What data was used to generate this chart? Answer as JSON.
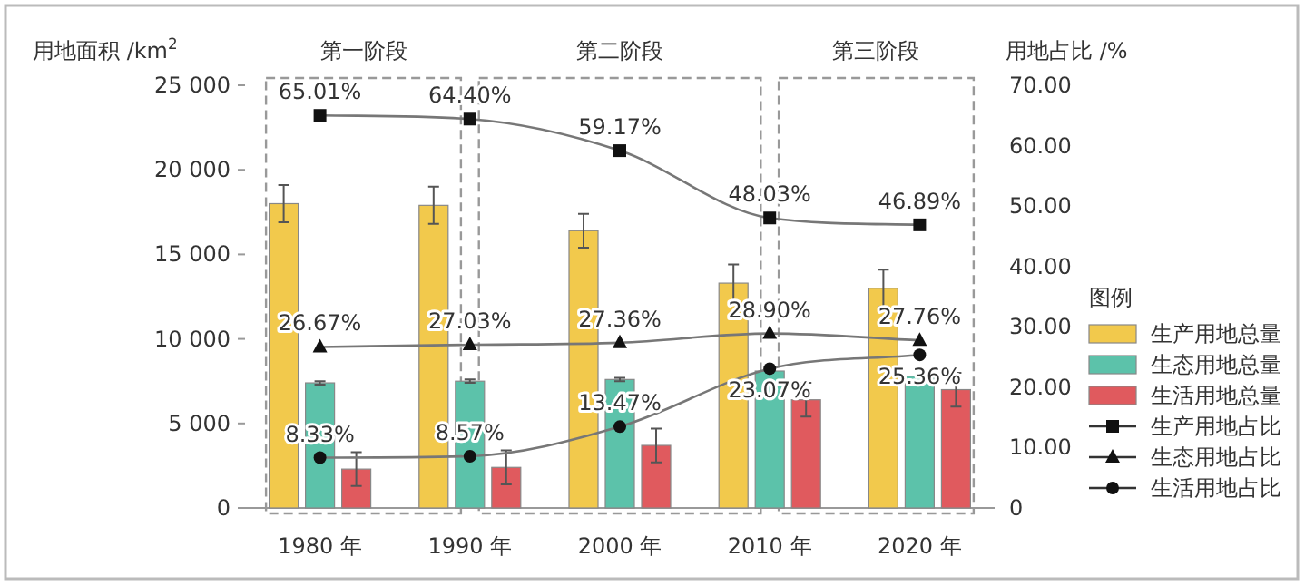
{
  "chart_data": {
    "type": "bar",
    "ylabel": "用地面积 /km$^{2}$",
    "y2label": "用地占比 /%",
    "legend_title": "图例",
    "legend": "right",
    "categories": [
      "1980 年",
      "1990 年",
      "2000 年",
      "2010 年",
      "2020 年"
    ],
    "ylim": [
      0,
      25000
    ],
    "yticks": [
      0,
      {
        "value": 5000,
        "label": "5 000"
      },
      {
        "value": 10000,
        "label": "10 000"
      },
      {
        "value": 15000,
        "label": "15 000"
      },
      {
        "value": 20000,
        "label": "20 000"
      },
      {
        "value": 25000,
        "label": "25 000"
      }
    ],
    "y2lim": [
      0,
      70
    ],
    "y2ticks": [
      0,
      {
        "value": 10,
        "label": "10.00"
      },
      {
        "value": 20,
        "label": "20.00"
      },
      {
        "value": 30,
        "label": "30.00"
      },
      {
        "value": 40,
        "label": "40.00"
      },
      {
        "value": 50,
        "label": "50.00"
      },
      {
        "value": 60,
        "label": "60.00"
      },
      {
        "value": 70,
        "label": "70.00"
      }
    ],
    "series": [
      {
        "name": "生产用地总量",
        "color": "#f2c94c",
        "values": [
          18000,
          17900,
          16400,
          13300,
          13000
        ],
        "errors": [
          1100,
          1100,
          1000,
          1100,
          1100
        ]
      },
      {
        "name": "生态用地总量",
        "color": "#5cc2aa",
        "values": [
          7400,
          7500,
          7600,
          8100,
          7800
        ],
        "errors": [
          100,
          100,
          100,
          null,
          null
        ]
      },
      {
        "name": "生活用地总量",
        "color": "#e05a5e",
        "values": [
          2300,
          2400,
          3700,
          6400,
          7000
        ],
        "errors": [
          1000,
          1000,
          1000,
          1000,
          1000
        ]
      },
      {
        "name": "生产用地占比",
        "type": "line",
        "axis": "y2",
        "marker": "square",
        "color": "#111111",
        "values": [
          65.01,
          64.4,
          59.17,
          48.03,
          46.89
        ],
        "value_labels": [
          "65.01%",
          "64.40%",
          "59.17%",
          "48.03%",
          "46.89%"
        ]
      },
      {
        "name": "生态用地占比",
        "type": "line",
        "axis": "y2",
        "marker": "triangle",
        "color": "#111111",
        "values": [
          26.67,
          27.03,
          27.36,
          28.9,
          27.76
        ],
        "value_labels": [
          "26.67%",
          "27.03%",
          "27.36%",
          "28.90%",
          "27.76%"
        ]
      },
      {
        "name": "生活用地占比",
        "type": "line",
        "axis": "y2",
        "marker": "circle",
        "color": "#111111",
        "values": [
          8.33,
          8.57,
          13.47,
          23.07,
          25.36
        ],
        "value_labels": [
          "8.33%",
          "8.57%",
          "13.47%",
          "23.07%",
          "25.36%"
        ]
      }
    ],
    "annotations": [
      "第一阶段",
      "第二阶段",
      "第三阶段"
    ]
  }
}
